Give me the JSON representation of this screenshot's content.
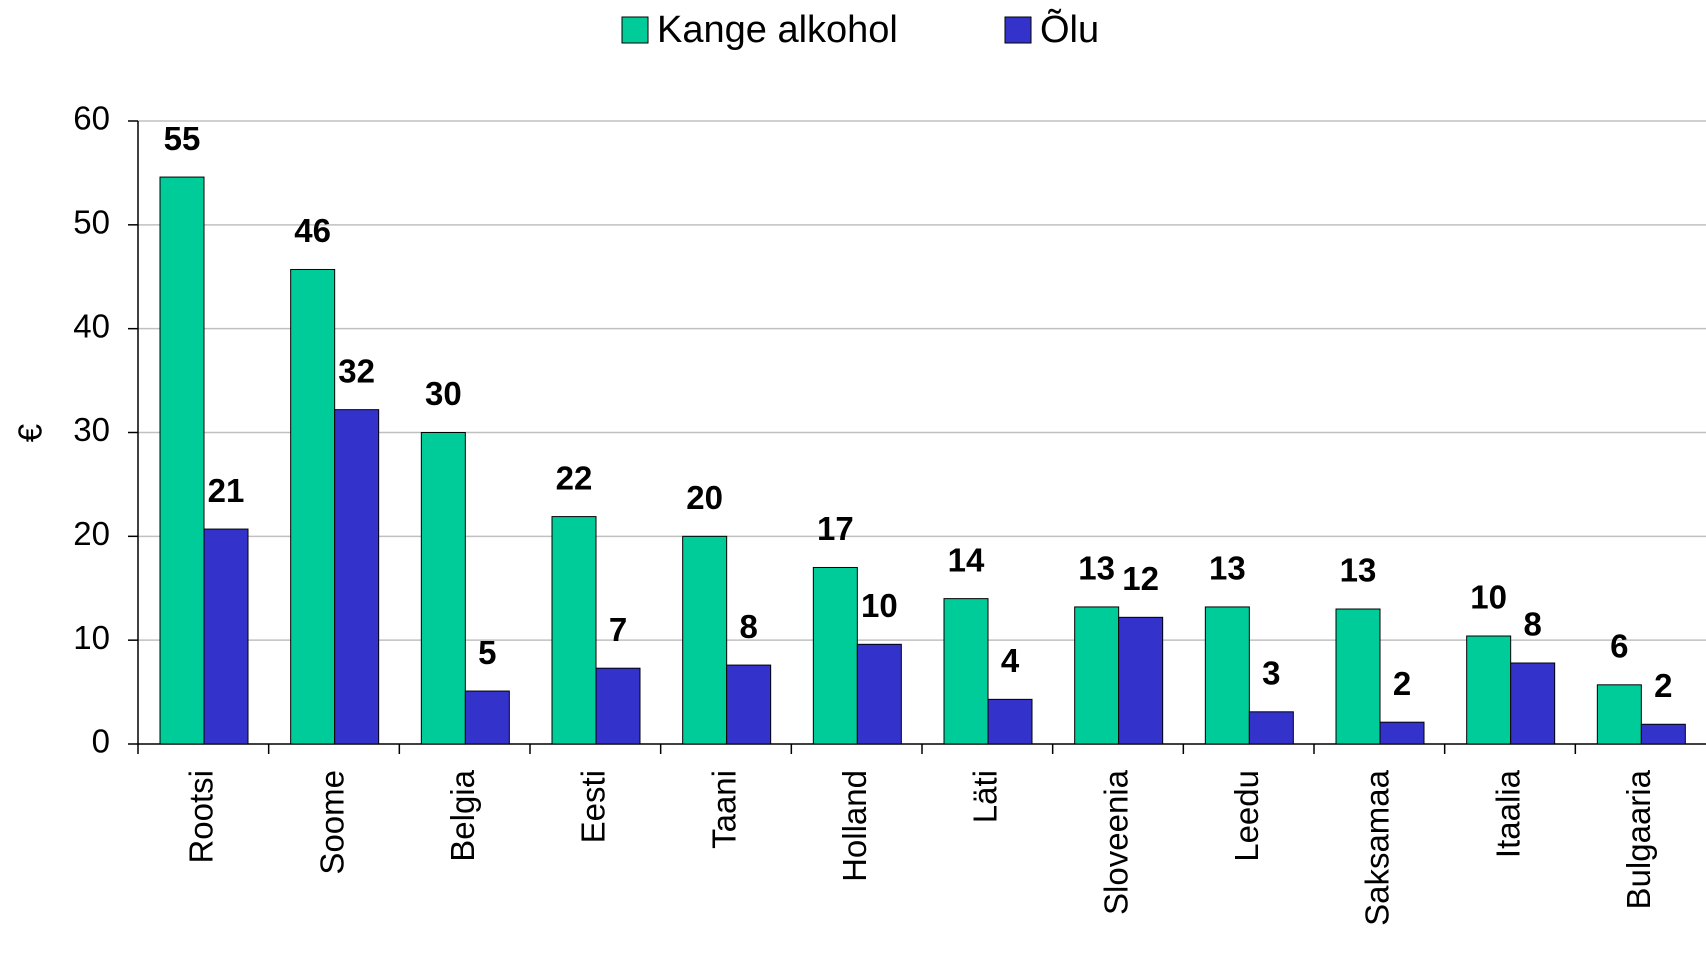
{
  "chart_data": {
    "type": "bar",
    "y_label": "€",
    "categories": [
      "Rootsi",
      "Soome",
      "Belgia",
      "Eesti",
      "Taani",
      "Holland",
      "Läti",
      "Sloveenia",
      "Leedu",
      "Saksamaa",
      "Itaalia",
      "Bulgaaria"
    ],
    "series": [
      {
        "name": "Kange alkohol",
        "color": "#00cc99",
        "values": [
          54.6,
          45.7,
          30,
          21.9,
          20,
          17,
          14,
          13.2,
          13.2,
          13,
          10.4,
          5.7
        ],
        "value_labels": [
          "55",
          "46",
          "30",
          "22",
          "20",
          "17",
          "14",
          "13",
          "13",
          "13",
          "10",
          "6"
        ]
      },
      {
        "name": "Õlu",
        "color": "#3333cc",
        "values": [
          20.7,
          32.2,
          5.1,
          7.3,
          7.6,
          9.6,
          4.3,
          12.2,
          3.1,
          2.1,
          7.8,
          1.9
        ],
        "value_labels": [
          "21",
          "32",
          "5",
          "7",
          "8",
          "10",
          "4",
          "12",
          "3",
          "2",
          "8",
          "2"
        ]
      }
    ],
    "ylim": [
      0,
      60
    ],
    "yticks": [
      0,
      10,
      20,
      30,
      40,
      50,
      60
    ],
    "grid": true,
    "legend": "top"
  }
}
